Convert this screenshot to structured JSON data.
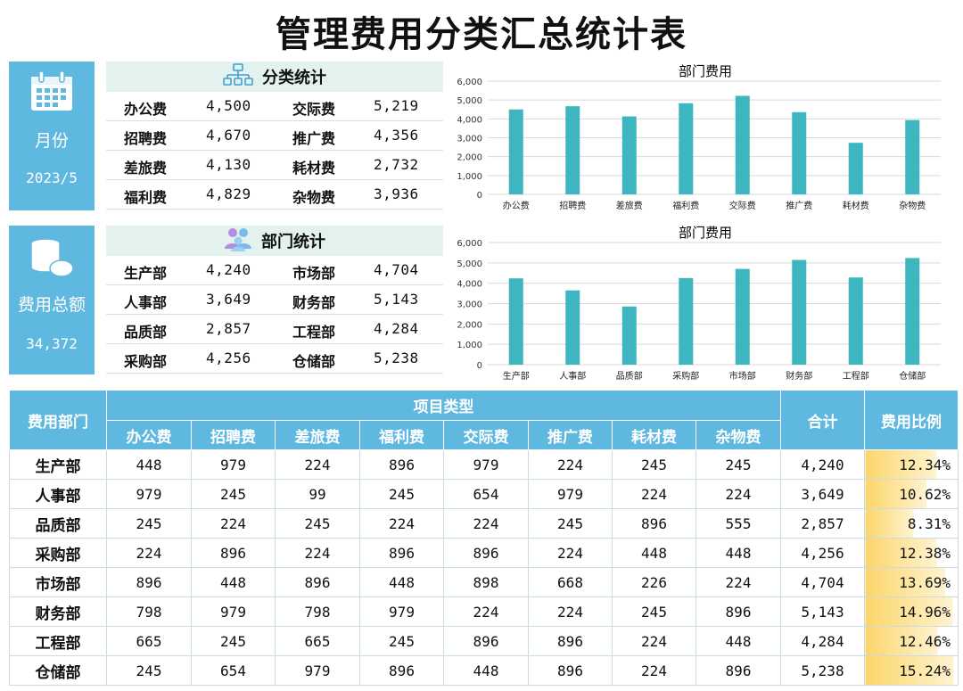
{
  "title": "管理费用分类汇总统计表",
  "month_box": {
    "icon": "calendar-icon",
    "label": "月份",
    "value": "2023/5"
  },
  "total_box": {
    "icon": "coins-stack-icon",
    "label": "费用总额",
    "value": "34,372"
  },
  "category_stats": {
    "title": "分类统计",
    "icon": "org-chart-icon",
    "rows": [
      [
        "办公费",
        "4,500",
        "交际费",
        "5,219"
      ],
      [
        "招聘费",
        "4,670",
        "推广费",
        "4,356"
      ],
      [
        "差旅费",
        "4,130",
        "耗材费",
        "2,732"
      ],
      [
        "福利费",
        "4,829",
        "杂物费",
        "3,936"
      ]
    ]
  },
  "dept_stats": {
    "title": "部门统计",
    "icon": "people-icon",
    "rows": [
      [
        "生产部",
        "4,240",
        "市场部",
        "4,704"
      ],
      [
        "人事部",
        "3,649",
        "财务部",
        "5,143"
      ],
      [
        "品质部",
        "2,857",
        "工程部",
        "4,284"
      ],
      [
        "采购部",
        "4,256",
        "仓储部",
        "5,238"
      ]
    ]
  },
  "colors": {
    "accent": "#5fb8df",
    "bar": "#3db6bf",
    "header_bg": "#e3f1ef",
    "ratio_bar": "#fbd66a"
  },
  "chart_data": [
    {
      "type": "bar",
      "title": "部门费用",
      "categories": [
        "办公费",
        "招聘费",
        "差旅费",
        "福利费",
        "交际费",
        "推广费",
        "耗材费",
        "杂物费"
      ],
      "values": [
        4500,
        4670,
        4130,
        4829,
        5219,
        4356,
        2732,
        3936
      ],
      "ylim": [
        0,
        6000
      ],
      "yticks": [
        "0",
        "1,000",
        "2,000",
        "3,000",
        "4,000",
        "5,000",
        "6,000"
      ],
      "grid": true
    },
    {
      "type": "bar",
      "title": "部门费用",
      "categories": [
        "生产部",
        "人事部",
        "品质部",
        "采购部",
        "市场部",
        "财务部",
        "工程部",
        "仓储部"
      ],
      "values": [
        4240,
        3649,
        2857,
        4256,
        4704,
        5143,
        4284,
        5238
      ],
      "ylim": [
        0,
        6000
      ],
      "yticks": [
        "0",
        "1,000",
        "2,000",
        "3,000",
        "4,000",
        "5,000",
        "6,000"
      ],
      "grid": true
    }
  ],
  "table": {
    "dept_header": "费用部门",
    "group_header": "项目类型",
    "columns": [
      "办公费",
      "招聘费",
      "差旅费",
      "福利费",
      "交际费",
      "推广费",
      "耗材费",
      "杂物费"
    ],
    "total_header": "合计",
    "ratio_header": "费用比例",
    "rows": [
      {
        "dept": "生产部",
        "values": [
          "448",
          "979",
          "224",
          "896",
          "979",
          "224",
          "245",
          "245"
        ],
        "total": "4,240",
        "ratio": "12.34%",
        "ratio_value": 0.1234
      },
      {
        "dept": "人事部",
        "values": [
          "979",
          "245",
          "99",
          "245",
          "654",
          "979",
          "224",
          "224"
        ],
        "total": "3,649",
        "ratio": "10.62%",
        "ratio_value": 0.1062
      },
      {
        "dept": "品质部",
        "values": [
          "245",
          "224",
          "245",
          "224",
          "224",
          "245",
          "896",
          "555"
        ],
        "total": "2,857",
        "ratio": "8.31%",
        "ratio_value": 0.0831
      },
      {
        "dept": "采购部",
        "values": [
          "224",
          "896",
          "224",
          "896",
          "896",
          "224",
          "448",
          "448"
        ],
        "total": "4,256",
        "ratio": "12.38%",
        "ratio_value": 0.1238
      },
      {
        "dept": "市场部",
        "values": [
          "896",
          "448",
          "896",
          "448",
          "898",
          "668",
          "226",
          "224"
        ],
        "total": "4,704",
        "ratio": "13.69%",
        "ratio_value": 0.1369
      },
      {
        "dept": "财务部",
        "values": [
          "798",
          "979",
          "798",
          "979",
          "224",
          "224",
          "245",
          "896"
        ],
        "total": "5,143",
        "ratio": "14.96%",
        "ratio_value": 0.1496
      },
      {
        "dept": "工程部",
        "values": [
          "665",
          "245",
          "665",
          "245",
          "896",
          "896",
          "224",
          "448"
        ],
        "total": "4,284",
        "ratio": "12.46%",
        "ratio_value": 0.1246
      },
      {
        "dept": "仓储部",
        "values": [
          "245",
          "654",
          "979",
          "896",
          "448",
          "896",
          "224",
          "896"
        ],
        "total": "5,238",
        "ratio": "15.24%",
        "ratio_value": 0.1524
      }
    ]
  }
}
